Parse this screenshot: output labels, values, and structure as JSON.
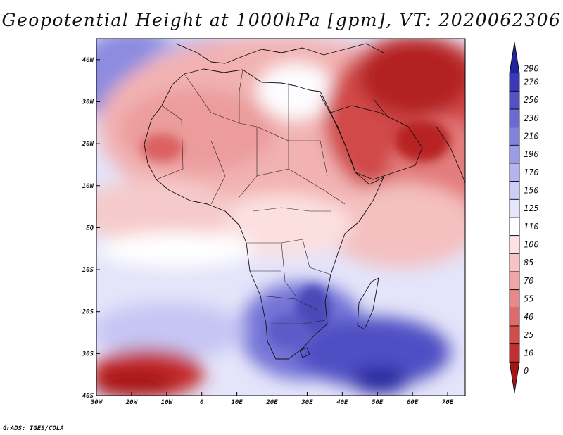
{
  "title": "Geopotential Height at 1000hPa [gpm], VT: 2020062306",
  "footer": "GrADS: IGES/COLA",
  "map": {
    "variable": "Geopotential Height",
    "level": "1000hPa",
    "units": "gpm",
    "valid_time": "2020062306",
    "lon_range": [
      -30,
      75
    ],
    "lat_range": [
      -40,
      45
    ],
    "x_ticks": [
      {
        "lon": -30,
        "label": "30W"
      },
      {
        "lon": -20,
        "label": "20W"
      },
      {
        "lon": -10,
        "label": "10W"
      },
      {
        "lon": 0,
        "label": "0"
      },
      {
        "lon": 10,
        "label": "10E"
      },
      {
        "lon": 20,
        "label": "20E"
      },
      {
        "lon": 30,
        "label": "30E"
      },
      {
        "lon": 40,
        "label": "40E"
      },
      {
        "lon": 50,
        "label": "50E"
      },
      {
        "lon": 60,
        "label": "60E"
      },
      {
        "lon": 70,
        "label": "70E"
      }
    ],
    "y_ticks": [
      {
        "lat": 40,
        "label": "40N"
      },
      {
        "lat": 30,
        "label": "30N"
      },
      {
        "lat": 20,
        "label": "20N"
      },
      {
        "lat": 10,
        "label": "10N"
      },
      {
        "lat": 0,
        "label": "EQ"
      },
      {
        "lat": -10,
        "label": "10S"
      },
      {
        "lat": -20,
        "label": "20S"
      },
      {
        "lat": -30,
        "label": "30S"
      },
      {
        "lat": -40,
        "label": "40S"
      }
    ]
  },
  "colorbar": {
    "labels": [
      "290",
      "270",
      "250",
      "230",
      "210",
      "190",
      "170",
      "150",
      "125",
      "110",
      "100",
      "85",
      "70",
      "55",
      "40",
      "25",
      "10",
      "0"
    ],
    "colors": [
      "#23239a",
      "#3a3ab8",
      "#5252c6",
      "#6a6ad2",
      "#8282dc",
      "#9b9be6",
      "#b4b4ef",
      "#cdcdf6",
      "#e5e5fb",
      "#ffffff",
      "#fde2e2",
      "#f7c4c4",
      "#f0a6a6",
      "#e88888",
      "#de6a6a",
      "#d24c4c",
      "#c32e2e",
      "#a51515"
    ]
  }
}
